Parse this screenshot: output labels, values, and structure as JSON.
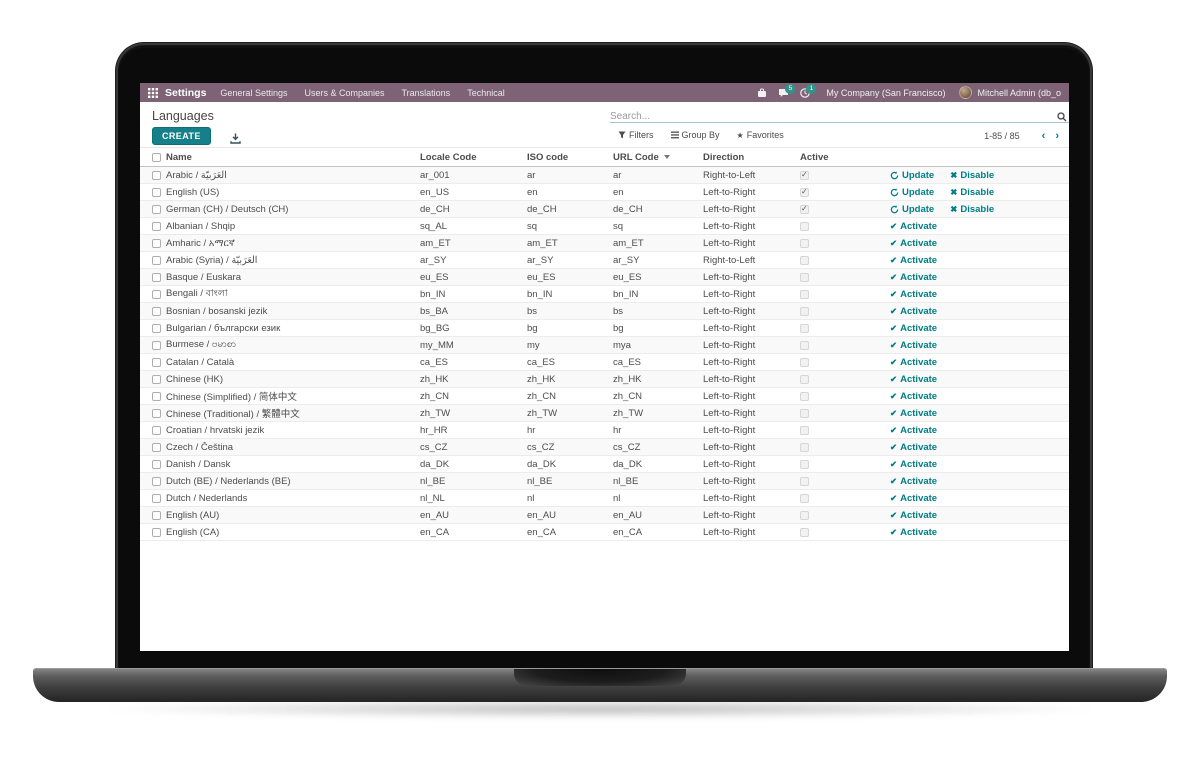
{
  "navbar": {
    "app_name": "Settings",
    "menu_items": [
      "General Settings",
      "Users & Companies",
      "Translations",
      "Technical"
    ],
    "systray": {
      "messages_badge": "5",
      "activities_badge": "1",
      "company": "My Company (San Francisco)",
      "user": "Mitchell Admin (db_o"
    }
  },
  "control_panel": {
    "title": "Languages",
    "create_label": "CREATE",
    "search_placeholder": "Search...",
    "filters_label": "Filters",
    "group_by_label": "Group By",
    "favorites_label": "Favorites",
    "pager_range": "1-85 / 85",
    "pager_prev": "‹",
    "pager_next": "›"
  },
  "table": {
    "columns": [
      "Name",
      "Locale Code",
      "ISO code",
      "URL Code",
      "Direction",
      "Active"
    ],
    "sorted_column": "URL Code",
    "action_labels": {
      "update": "Update",
      "disable": "Disable",
      "activate": "Activate"
    },
    "rows": [
      {
        "name": "Arabic / الْعَرَبيّة",
        "locale": "ar_001",
        "iso": "ar",
        "url": "ar",
        "direction": "Right-to-Left",
        "active": true
      },
      {
        "name": "English (US)",
        "locale": "en_US",
        "iso": "en",
        "url": "en",
        "direction": "Left-to-Right",
        "active": true
      },
      {
        "name": "German (CH) / Deutsch (CH)",
        "locale": "de_CH",
        "iso": "de_CH",
        "url": "de_CH",
        "direction": "Left-to-Right",
        "active": true
      },
      {
        "name": "Albanian / Shqip",
        "locale": "sq_AL",
        "iso": "sq",
        "url": "sq",
        "direction": "Left-to-Right",
        "active": false
      },
      {
        "name": "Amharic / አማርኛ",
        "locale": "am_ET",
        "iso": "am_ET",
        "url": "am_ET",
        "direction": "Left-to-Right",
        "active": false
      },
      {
        "name": "Arabic (Syria) / الْعَرَبيّة",
        "locale": "ar_SY",
        "iso": "ar_SY",
        "url": "ar_SY",
        "direction": "Right-to-Left",
        "active": false
      },
      {
        "name": "Basque / Euskara",
        "locale": "eu_ES",
        "iso": "eu_ES",
        "url": "eu_ES",
        "direction": "Left-to-Right",
        "active": false
      },
      {
        "name": "Bengali / বাংলা",
        "locale": "bn_IN",
        "iso": "bn_IN",
        "url": "bn_IN",
        "direction": "Left-to-Right",
        "active": false
      },
      {
        "name": "Bosnian / bosanski jezik",
        "locale": "bs_BA",
        "iso": "bs",
        "url": "bs",
        "direction": "Left-to-Right",
        "active": false
      },
      {
        "name": "Bulgarian / български език",
        "locale": "bg_BG",
        "iso": "bg",
        "url": "bg",
        "direction": "Left-to-Right",
        "active": false
      },
      {
        "name": "Burmese / ဗမာစာ",
        "locale": "my_MM",
        "iso": "my",
        "url": "mya",
        "direction": "Left-to-Right",
        "active": false
      },
      {
        "name": "Catalan / Català",
        "locale": "ca_ES",
        "iso": "ca_ES",
        "url": "ca_ES",
        "direction": "Left-to-Right",
        "active": false
      },
      {
        "name": "Chinese (HK)",
        "locale": "zh_HK",
        "iso": "zh_HK",
        "url": "zh_HK",
        "direction": "Left-to-Right",
        "active": false
      },
      {
        "name": "Chinese (Simplified) / 简体中文",
        "locale": "zh_CN",
        "iso": "zh_CN",
        "url": "zh_CN",
        "direction": "Left-to-Right",
        "active": false
      },
      {
        "name": "Chinese (Traditional) / 繁體中文",
        "locale": "zh_TW",
        "iso": "zh_TW",
        "url": "zh_TW",
        "direction": "Left-to-Right",
        "active": false
      },
      {
        "name": "Croatian / hrvatski jezik",
        "locale": "hr_HR",
        "iso": "hr",
        "url": "hr",
        "direction": "Left-to-Right",
        "active": false
      },
      {
        "name": "Czech / Čeština",
        "locale": "cs_CZ",
        "iso": "cs_CZ",
        "url": "cs_CZ",
        "direction": "Left-to-Right",
        "active": false
      },
      {
        "name": "Danish / Dansk",
        "locale": "da_DK",
        "iso": "da_DK",
        "url": "da_DK",
        "direction": "Left-to-Right",
        "active": false
      },
      {
        "name": "Dutch (BE) / Nederlands (BE)",
        "locale": "nl_BE",
        "iso": "nl_BE",
        "url": "nl_BE",
        "direction": "Left-to-Right",
        "active": false
      },
      {
        "name": "Dutch / Nederlands",
        "locale": "nl_NL",
        "iso": "nl",
        "url": "nl",
        "direction": "Left-to-Right",
        "active": false
      },
      {
        "name": "English (AU)",
        "locale": "en_AU",
        "iso": "en_AU",
        "url": "en_AU",
        "direction": "Left-to-Right",
        "active": false
      },
      {
        "name": "English (CA)",
        "locale": "en_CA",
        "iso": "en_CA",
        "url": "en_CA",
        "direction": "Left-to-Right",
        "active": false
      }
    ]
  },
  "colors": {
    "navbar_bg": "#7d6375",
    "primary_teal": "#017e84",
    "create_button": "#16808a",
    "badge": "#2f958a"
  }
}
